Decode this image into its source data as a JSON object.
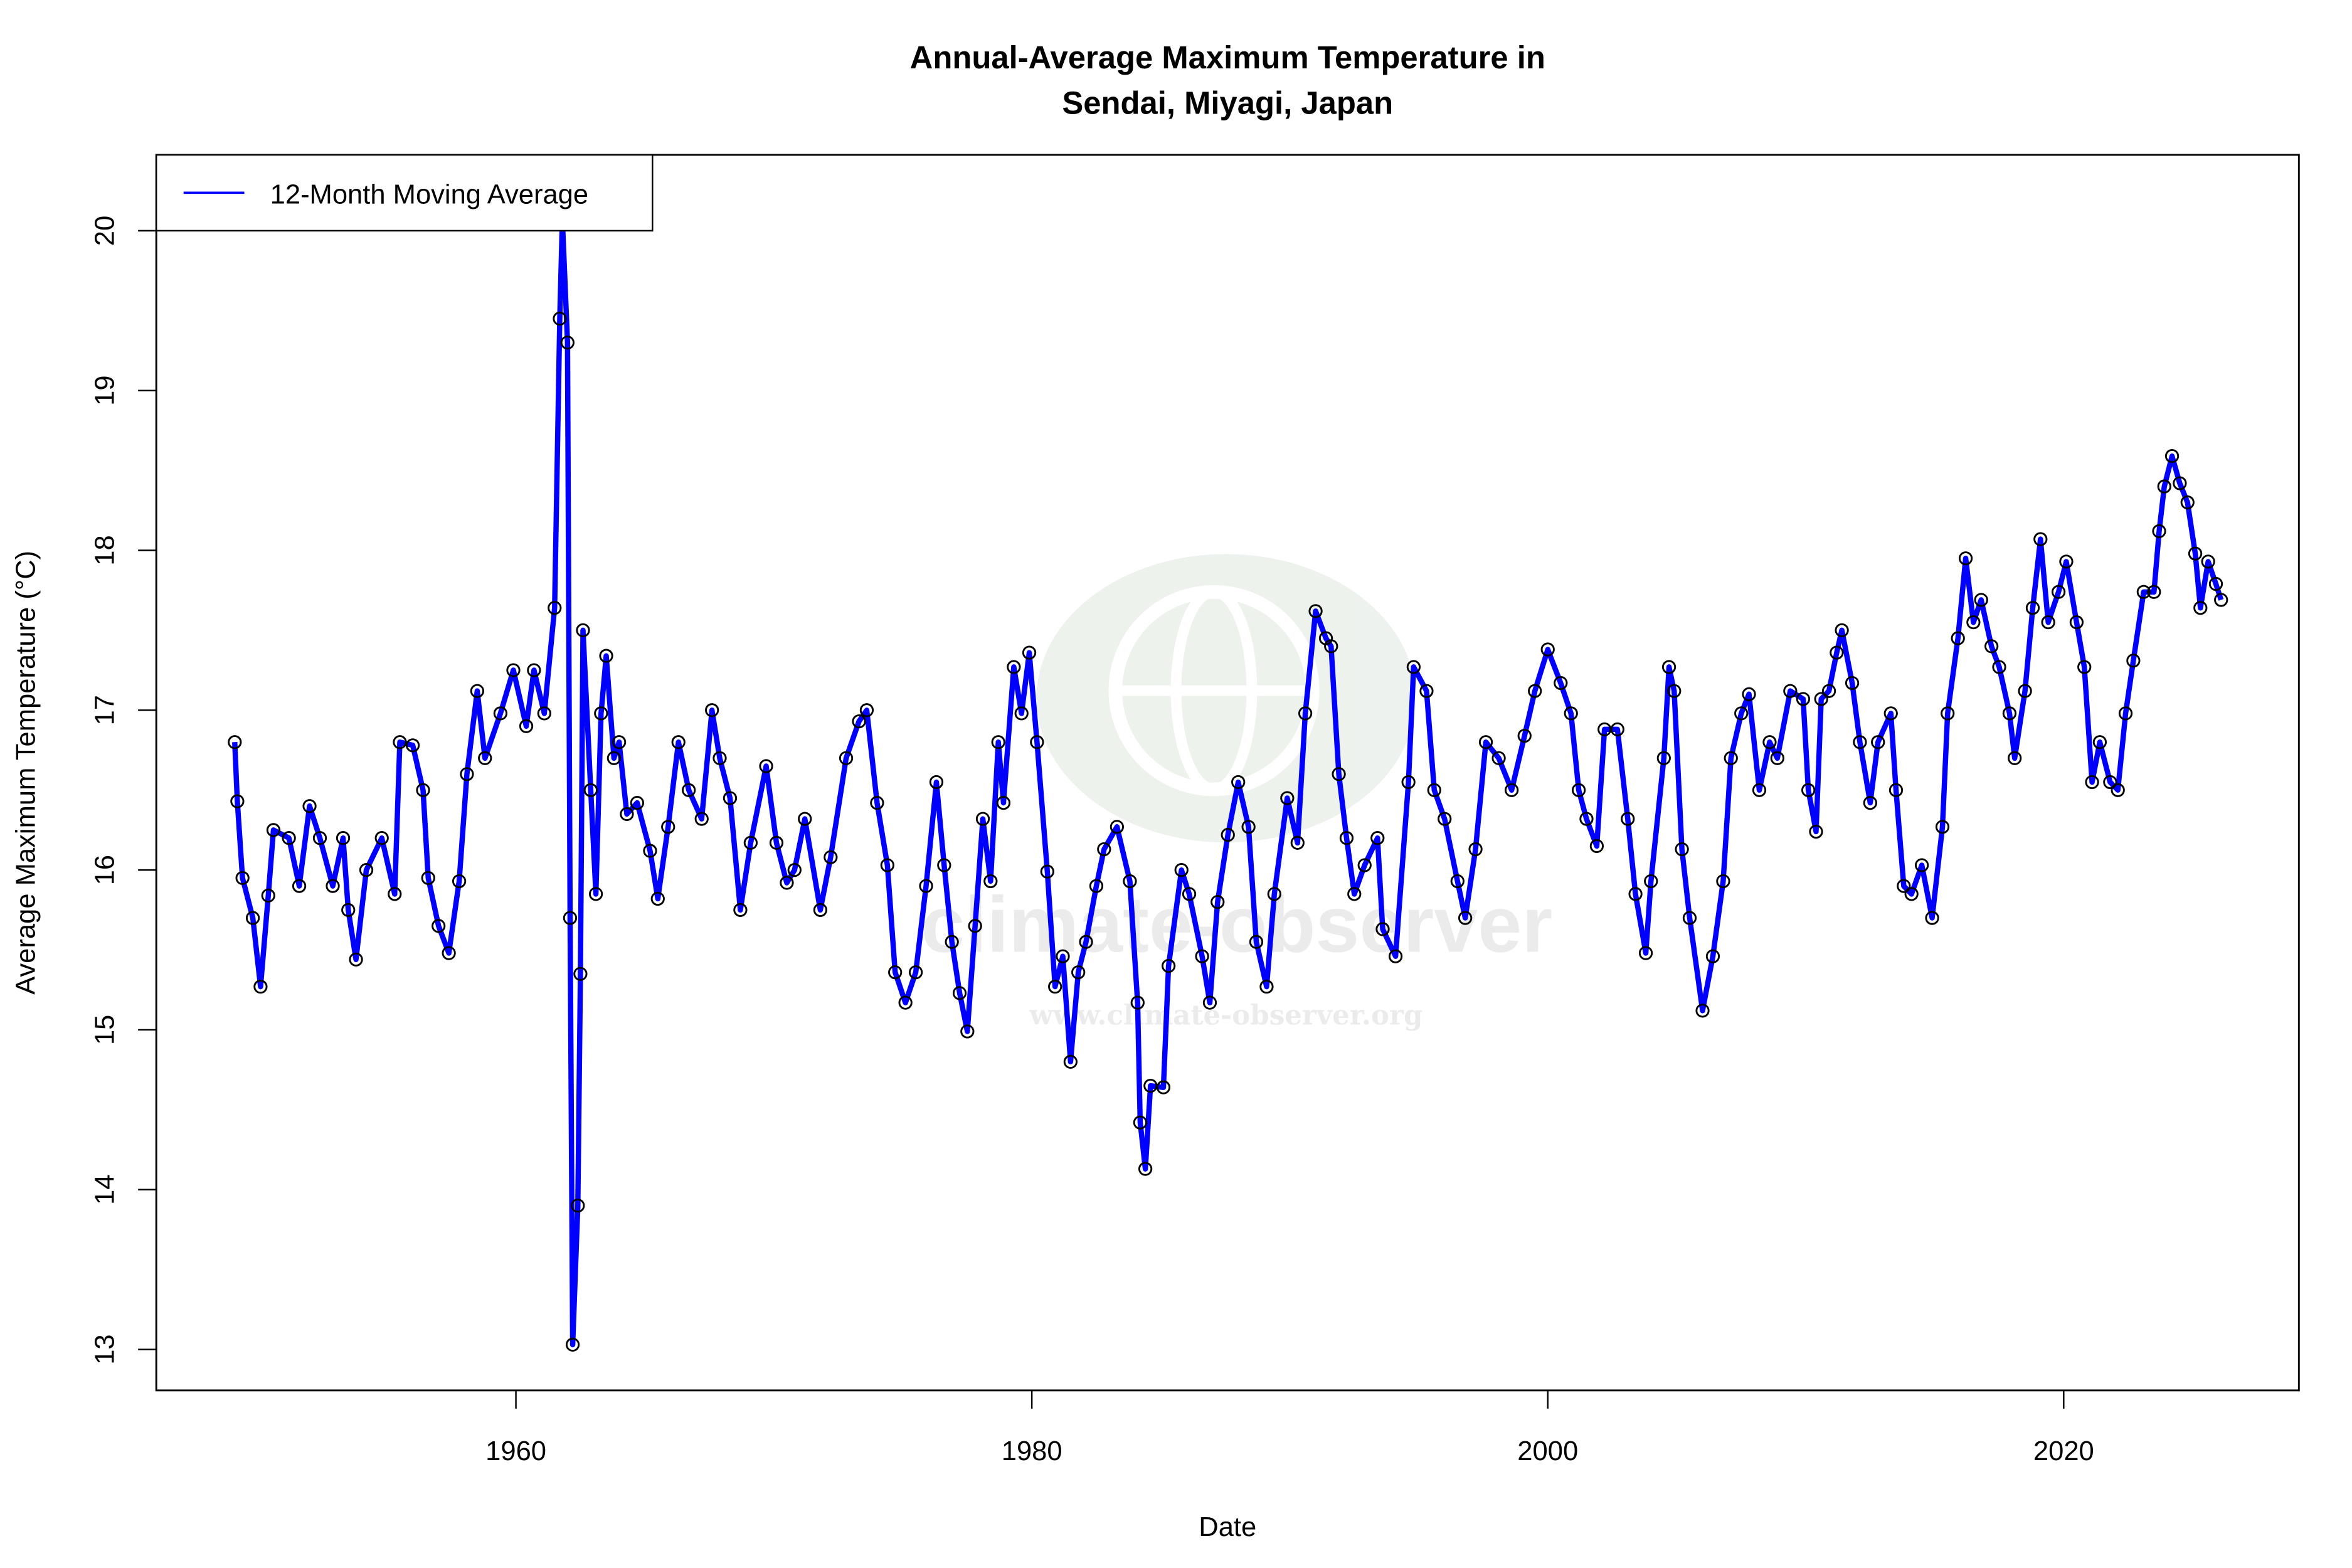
{
  "chart_data": {
    "type": "line",
    "title": "Annual-Average Maximum Temperature in",
    "subtitle": "Sendai, Miyagi, Japan",
    "xlabel": "Date",
    "ylabel": "Average Maximum Temperature (°C)",
    "xlim": [
      1946,
      2029
    ],
    "ylim": [
      12.75,
      20.5
    ],
    "x_ticks": [
      1960,
      1980,
      2000,
      2020
    ],
    "x_tick_labels": [
      "1960",
      "1980",
      "2000",
      "2020"
    ],
    "y_ticks": [
      13,
      14,
      15,
      16,
      17,
      18,
      19,
      20
    ],
    "y_tick_labels": [
      "13",
      "14",
      "15",
      "16",
      "17",
      "18",
      "19",
      "20"
    ],
    "grid": false,
    "legend": {
      "position": "top-left",
      "entries": [
        "12-Month Moving Average"
      ]
    },
    "series": [
      {
        "name": "12-Month Moving Average",
        "color": "#0000ff",
        "marker_color": "#000000",
        "x": [
          1949.1,
          1949.2,
          1949.4,
          1949.8,
          1950.1,
          1950.4,
          1950.6,
          1951.2,
          1951.6,
          1952.0,
          1952.4,
          1952.9,
          1953.3,
          1953.5,
          1953.8,
          1954.2,
          1954.8,
          1955.3,
          1955.5,
          1956.0,
          1956.4,
          1956.6,
          1957.0,
          1957.4,
          1957.8,
          1958.1,
          1958.5,
          1958.8,
          1959.4,
          1959.9,
          1960.4,
          1960.7,
          1961.1,
          1961.5,
          1961.7,
          1961.8,
          1962.0,
          1962.1,
          1962.2,
          1962.4,
          1962.5,
          1962.6,
          1962.9,
          1963.1,
          1963.3,
          1963.5,
          1963.8,
          1964.0,
          1964.3,
          1964.7,
          1965.2,
          1965.5,
          1965.9,
          1966.3,
          1966.7,
          1967.2,
          1967.6,
          1967.9,
          1968.3,
          1968.7,
          1969.1,
          1969.7,
          1970.1,
          1970.5,
          1970.8,
          1971.2,
          1971.8,
          1972.2,
          1972.8,
          1973.3,
          1973.6,
          1974.0,
          1974.4,
          1974.7,
          1975.1,
          1975.5,
          1975.9,
          1976.3,
          1976.6,
          1976.9,
          1977.2,
          1977.5,
          1977.8,
          1978.1,
          1978.4,
          1978.7,
          1978.9,
          1979.3,
          1979.6,
          1979.9,
          1980.2,
          1980.6,
          1980.9,
          1981.2,
          1981.5,
          1981.8,
          1982.1,
          1982.5,
          1982.8,
          1983.3,
          1983.8,
          1984.1,
          1984.2,
          1984.4,
          1984.6,
          1985.1,
          1985.3,
          1985.8,
          1986.1,
          1986.6,
          1986.9,
          1987.2,
          1987.6,
          1988.0,
          1988.4,
          1988.7,
          1989.1,
          1989.4,
          1989.9,
          1990.3,
          1990.6,
          1991.0,
          1991.4,
          1991.6,
          1991.9,
          1992.2,
          1992.5,
          1992.9,
          1993.4,
          1993.6,
          1994.1,
          1994.6,
          1994.8,
          1995.3,
          1995.6,
          1996.0,
          1996.5,
          1996.8,
          1997.2,
          1997.6,
          1998.1,
          1998.6,
          1999.1,
          1999.5,
          2000.0,
          2000.5,
          2000.9,
          2001.2,
          2001.5,
          2001.9,
          2002.2,
          2002.7,
          2003.1,
          2003.4,
          2003.8,
          2004.0,
          2004.5,
          2004.7,
          2004.9,
          2005.2,
          2005.5,
          2006.0,
          2006.4,
          2006.8,
          2007.1,
          2007.5,
          2007.8,
          2008.2,
          2008.6,
          2008.9,
          2009.4,
          2009.9,
          2010.1,
          2010.4,
          2010.6,
          2010.9,
          2011.2,
          2011.4,
          2011.8,
          2012.1,
          2012.5,
          2012.8,
          2013.3,
          2013.5,
          2013.8,
          2014.1,
          2014.5,
          2014.9,
          2015.3,
          2015.5,
          2015.9,
          2016.2,
          2016.5,
          2016.8,
          2017.2,
          2017.5,
          2017.9,
          2018.1,
          2018.5,
          2018.8,
          2019.1,
          2019.4,
          2019.8,
          2020.1,
          2020.5,
          2020.8,
          2021.1,
          2021.4,
          2021.8,
          2022.1,
          2022.4,
          2022.7,
          2023.1,
          2023.5,
          2023.7,
          2023.9,
          2024.2,
          2024.5,
          2024.8,
          2025.1,
          2025.3,
          2025.6,
          2025.9,
          2026.1
        ],
        "y": [
          16.8,
          16.43,
          15.95,
          15.7,
          15.27,
          15.84,
          16.25,
          16.2,
          15.9,
          16.4,
          16.2,
          15.9,
          16.2,
          15.75,
          15.44,
          16.0,
          16.2,
          15.85,
          16.8,
          16.78,
          16.5,
          15.95,
          15.65,
          15.48,
          15.93,
          16.6,
          17.12,
          16.7,
          16.98,
          17.25,
          16.9,
          17.25,
          16.98,
          17.64,
          19.45,
          20.07,
          19.3,
          15.7,
          13.03,
          13.9,
          15.35,
          17.5,
          16.5,
          15.85,
          16.98,
          17.34,
          16.7,
          16.8,
          16.35,
          16.42,
          16.12,
          15.82,
          16.27,
          16.8,
          16.5,
          16.32,
          17.0,
          16.7,
          16.45,
          15.75,
          16.17,
          16.65,
          16.17,
          15.92,
          16.0,
          16.32,
          15.75,
          16.08,
          16.7,
          16.93,
          17.0,
          16.42,
          16.03,
          15.36,
          15.17,
          15.36,
          15.9,
          16.55,
          16.03,
          15.55,
          15.23,
          14.99,
          15.65,
          16.32,
          15.93,
          16.8,
          16.42,
          17.27,
          16.98,
          17.36,
          16.8,
          15.99,
          15.27,
          15.46,
          14.8,
          15.36,
          15.55,
          15.9,
          16.13,
          16.27,
          15.93,
          15.17,
          14.42,
          14.13,
          14.65,
          14.64,
          15.4,
          16.0,
          15.85,
          15.46,
          15.17,
          15.8,
          16.22,
          16.55,
          16.27,
          15.55,
          15.27,
          15.85,
          16.45,
          16.17,
          16.98,
          17.62,
          17.45,
          17.4,
          16.6,
          16.2,
          15.85,
          16.03,
          16.2,
          15.63,
          15.46,
          16.55,
          17.27,
          17.12,
          16.5,
          16.32,
          15.93,
          15.7,
          16.13,
          16.8,
          16.7,
          16.5,
          16.84,
          17.12,
          17.38,
          17.17,
          16.98,
          16.5,
          16.32,
          16.15,
          16.88,
          16.88,
          16.32,
          15.85,
          15.48,
          15.93,
          16.7,
          17.27,
          17.12,
          16.13,
          15.7,
          15.12,
          15.46,
          15.93,
          16.7,
          16.98,
          17.1,
          16.5,
          16.8,
          16.7,
          17.12,
          17.07,
          16.5,
          16.24,
          17.07,
          17.12,
          17.36,
          17.5,
          17.17,
          16.8,
          16.42,
          16.8,
          16.98,
          16.5,
          15.9,
          15.85,
          16.03,
          15.7,
          16.27,
          16.98,
          17.45,
          17.95,
          17.55,
          17.69,
          17.4,
          17.27,
          16.98,
          16.7,
          17.12,
          17.64,
          18.07,
          17.55,
          17.74,
          17.93,
          17.55,
          17.27,
          16.55,
          16.8,
          16.55,
          16.5,
          16.98,
          17.31,
          17.74,
          17.74,
          18.12,
          18.4,
          18.59,
          18.42,
          18.3,
          17.98,
          17.64,
          17.93,
          17.79,
          17.69
        ]
      }
    ],
    "watermark": "climate-observer",
    "watermark_url": "www.climate-observer.org"
  }
}
